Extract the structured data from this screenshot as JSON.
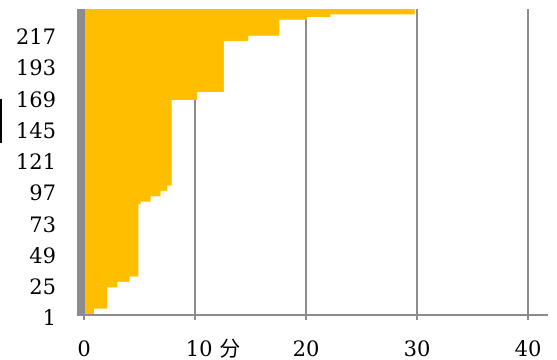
{
  "chart_data": {
    "type": "area",
    "title": "",
    "xlabel": "",
    "ylabel": "",
    "x_tick_labels": [
      "0",
      "10 分",
      "20",
      "30",
      "40"
    ],
    "y_tick_labels": [
      "1",
      "25",
      "49",
      "73",
      "97",
      "121",
      "145",
      "169",
      "193",
      "217"
    ],
    "xlim": [
      0,
      40
    ],
    "ylim": [
      1,
      229
    ],
    "grid": "vertical",
    "step_series": {
      "x": [
        0.2,
        0.9,
        2.1,
        3.0,
        4.1,
        4.9,
        5.1,
        6.0,
        6.9,
        7.5,
        7.9,
        10.2,
        12.6,
        14.8,
        17.6,
        20.1,
        22.2,
        29.8,
        30.3,
        40.0
      ],
      "y": [
        1,
        1,
        5,
        21,
        25,
        29,
        83,
        85,
        89,
        93,
        97,
        161,
        167,
        205,
        209,
        221,
        223,
        225,
        230,
        230
      ]
    },
    "colors": {
      "fill": "#ffbf00",
      "axis": "#8c8c8c",
      "grid": "#8c8c8c",
      "text": "#000000"
    }
  }
}
